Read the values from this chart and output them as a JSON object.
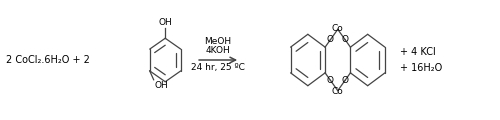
{
  "fig_width": 5.0,
  "fig_height": 1.2,
  "dpi": 100,
  "bg_color": "#ffffff",
  "line_color": "#444444",
  "text_color": "#000000",
  "reactant_text": "2 CoCl₂.6H₂O + 2",
  "arrow_text_top1": "MeOH",
  "arrow_text_top2": "4KOH",
  "arrow_text_bottom": "24 hr, 25 ºC",
  "product_text1": "+ 4 KCl",
  "product_text2": "+ 16H₂O"
}
